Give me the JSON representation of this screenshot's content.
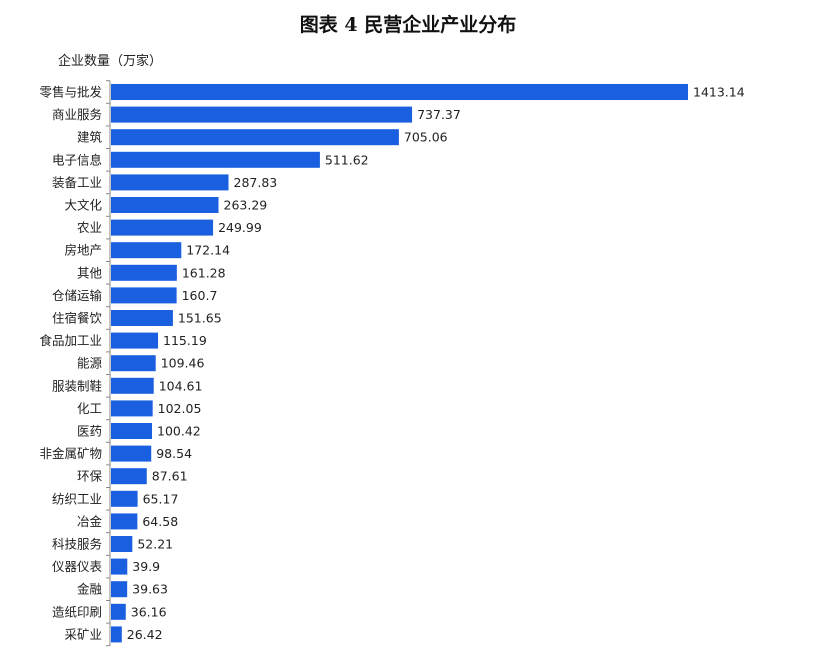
{
  "chart_data": {
    "type": "bar",
    "orientation": "horizontal",
    "title": "图表 4  民营企业产业分布",
    "ylabel": "企业数量（万家）",
    "xlabel": "",
    "categories": [
      "零售与批发",
      "商业服务",
      "建筑",
      "电子信息",
      "装备工业",
      "大文化",
      "农业",
      "房地产",
      "其他",
      "仓储运输",
      "住宿餐饮",
      "食品加工业",
      "能源",
      "服装制鞋",
      "化工",
      "医药",
      "非金属矿物",
      "环保",
      "纺织工业",
      "冶金",
      "科技服务",
      "仪器仪表",
      "金融",
      "造纸印刷",
      "采矿业"
    ],
    "values": [
      1413.14,
      737.37,
      705.06,
      511.62,
      287.83,
      263.29,
      249.99,
      172.14,
      161.28,
      160.7,
      151.65,
      115.19,
      109.46,
      104.61,
      102.05,
      100.42,
      98.54,
      87.61,
      65.17,
      64.58,
      52.21,
      39.9,
      39.63,
      36.16,
      26.42
    ],
    "value_labels": [
      "1413.14",
      "737.37",
      "705.06",
      "511.62",
      "287.83",
      "263.29",
      "249.99",
      "172.14",
      "161.28",
      "160.7",
      "151.65",
      "115.19",
      "109.46",
      "104.61",
      "102.05",
      "100.42",
      "98.54",
      "87.61",
      "65.17",
      "64.58",
      "52.21",
      "39.9",
      "39.63",
      "36.16",
      "26.42"
    ],
    "xlim": [
      0,
      1413.14
    ],
    "bar_color": "#1a5fe0",
    "grid": false,
    "legend": "none"
  }
}
